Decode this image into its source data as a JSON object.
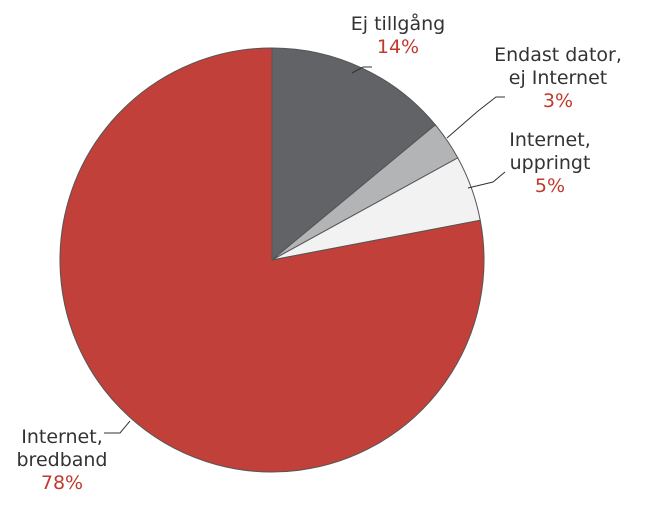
{
  "chart_data": {
    "type": "pie",
    "title": "",
    "start_angle_deg": 0,
    "direction": "clockwise",
    "slices": [
      {
        "label": [
          "Ej tillgång"
        ],
        "value": 14,
        "value_label": "14%",
        "color": "#626366"
      },
      {
        "label": [
          "Endast dator,",
          "ej Internet"
        ],
        "value": 3,
        "value_label": "3%",
        "color": "#b3b4b6"
      },
      {
        "label": [
          "Internet,",
          "uppringt"
        ],
        "value": 5,
        "value_label": "5%",
        "color": "#f2f2f2"
      },
      {
        "label": [
          "Internet,",
          "bredband"
        ],
        "value": 78,
        "value_label": "78%",
        "color": "#c1413a"
      }
    ],
    "legend": "none",
    "label_style": "outside labels with leader lines"
  }
}
